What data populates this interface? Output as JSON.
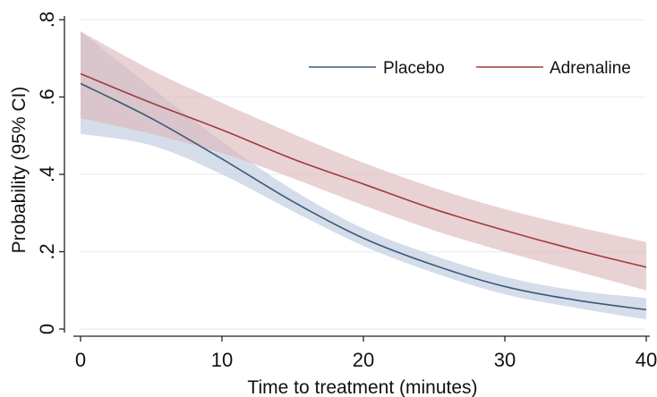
{
  "chart_data": {
    "type": "line",
    "title": "",
    "xlabel": "Time to treatment (minutes)",
    "ylabel": "Probability (95% CI)",
    "xlim": [
      0,
      40
    ],
    "ylim": [
      0,
      0.8
    ],
    "x_ticks": [
      {
        "value": 0,
        "label": "0"
      },
      {
        "value": 10,
        "label": "10"
      },
      {
        "value": 20,
        "label": "20"
      },
      {
        "value": 30,
        "label": "30"
      },
      {
        "value": 40,
        "label": "40"
      }
    ],
    "y_ticks": [
      {
        "value": 0,
        "label": "0"
      },
      {
        "value": 0.2,
        "label": ".2"
      },
      {
        "value": 0.4,
        "label": ".4"
      },
      {
        "value": 0.6,
        "label": ".6"
      },
      {
        "value": 0.8,
        "label": ".8"
      }
    ],
    "grid": "horizontal",
    "legend_position": "top-right",
    "x": [
      0,
      5,
      10,
      15,
      20,
      25,
      30,
      35,
      40
    ],
    "series": [
      {
        "name": "Placebo",
        "color": "#3b5878",
        "band_color": "#b9c8db",
        "values": [
          0.635,
          0.545,
          0.44,
          0.33,
          0.235,
          0.165,
          0.11,
          0.075,
          0.05
        ],
        "lower": [
          0.505,
          0.475,
          0.4,
          0.305,
          0.215,
          0.145,
          0.09,
          0.055,
          0.025
        ],
        "upper": [
          0.77,
          0.625,
          0.485,
          0.36,
          0.26,
          0.19,
          0.135,
          0.1,
          0.08
        ]
      },
      {
        "name": "Adrenaline",
        "color": "#9e3b3f",
        "band_color": "#dcb6b8",
        "values": [
          0.66,
          0.585,
          0.515,
          0.44,
          0.375,
          0.31,
          0.255,
          0.205,
          0.16
        ],
        "lower": [
          0.545,
          0.505,
          0.455,
          0.39,
          0.32,
          0.255,
          0.2,
          0.15,
          0.1
        ],
        "upper": [
          0.77,
          0.67,
          0.585,
          0.505,
          0.43,
          0.365,
          0.31,
          0.265,
          0.225
        ]
      }
    ]
  }
}
